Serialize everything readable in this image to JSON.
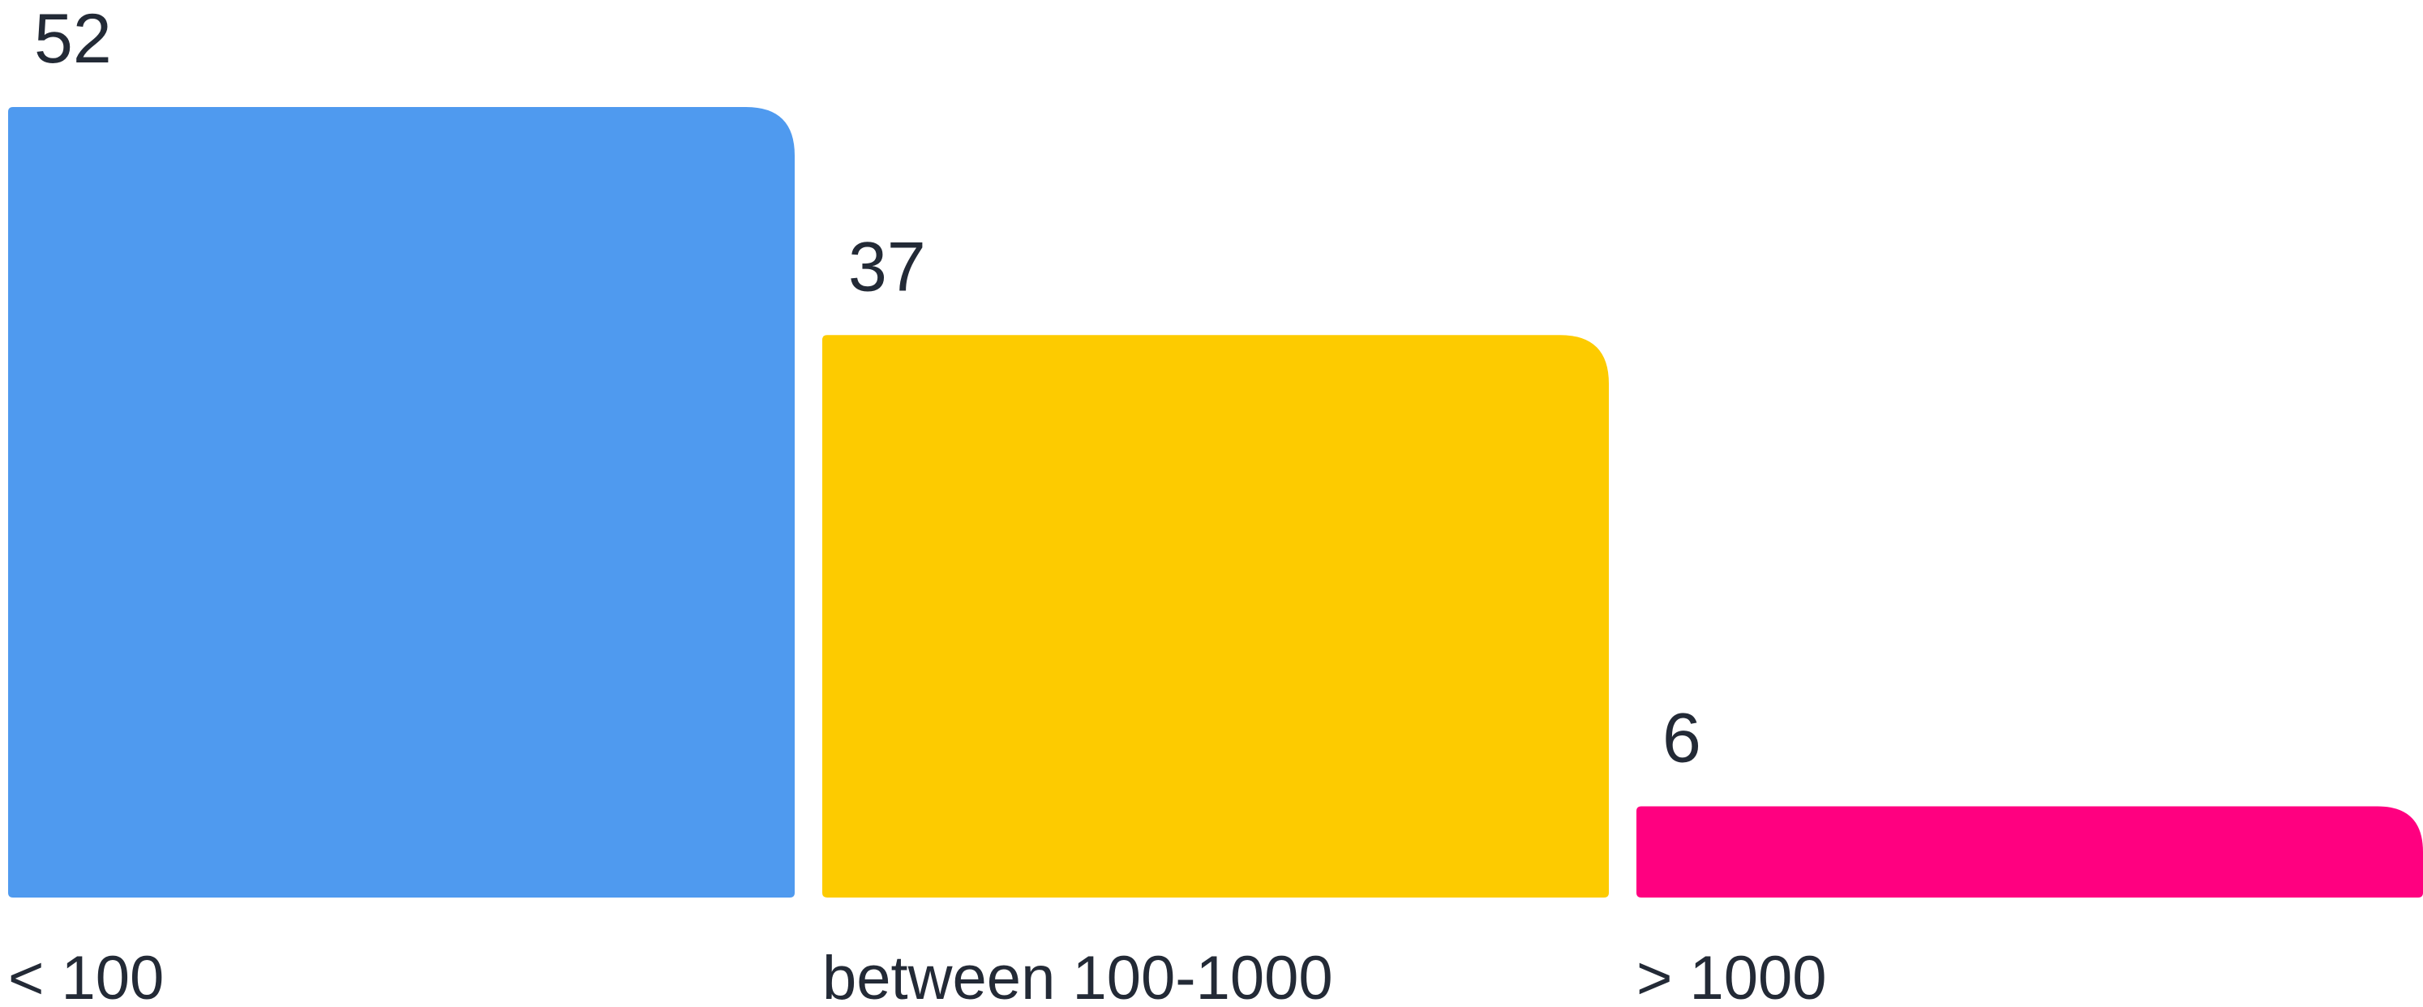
{
  "chart_data": {
    "type": "bar",
    "categories": [
      "< 100",
      "between 100-1000",
      "> 1000"
    ],
    "values": [
      52,
      37,
      6
    ],
    "colors": [
      "#4f9aef",
      "#fdcb00",
      "#ff0080"
    ],
    "ylim": [
      0,
      52
    ],
    "grid": false,
    "legend": "none"
  }
}
